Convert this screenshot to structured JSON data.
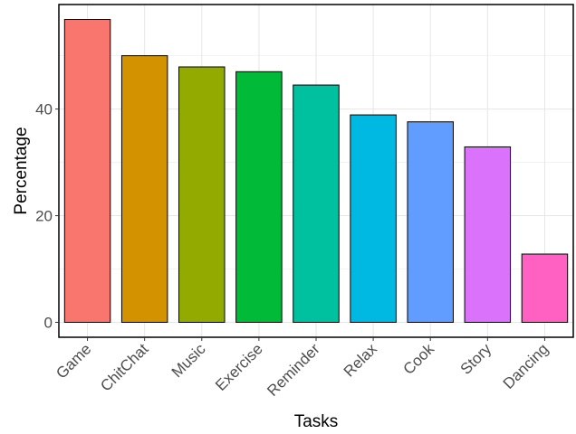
{
  "chart_data": {
    "type": "bar",
    "xlabel": "Tasks",
    "ylabel": "Percentage",
    "categories": [
      "Game",
      "ChitChat",
      "Music",
      "Exercise",
      "Reminder",
      "Relax",
      "Cook",
      "Story",
      "Dancing"
    ],
    "values": [
      56.8,
      50.0,
      47.9,
      47.0,
      44.5,
      38.9,
      37.6,
      32.9,
      12.8
    ],
    "colors": [
      "#F8766D",
      "#D39200",
      "#93AA00",
      "#00BA38",
      "#00C19F",
      "#00B9E3",
      "#619CFF",
      "#DB72FB",
      "#FF61C3"
    ],
    "yticks": [
      0,
      20,
      40
    ],
    "ylim": [
      -2.8,
      59.6
    ],
    "grid": true,
    "legend": "none"
  }
}
